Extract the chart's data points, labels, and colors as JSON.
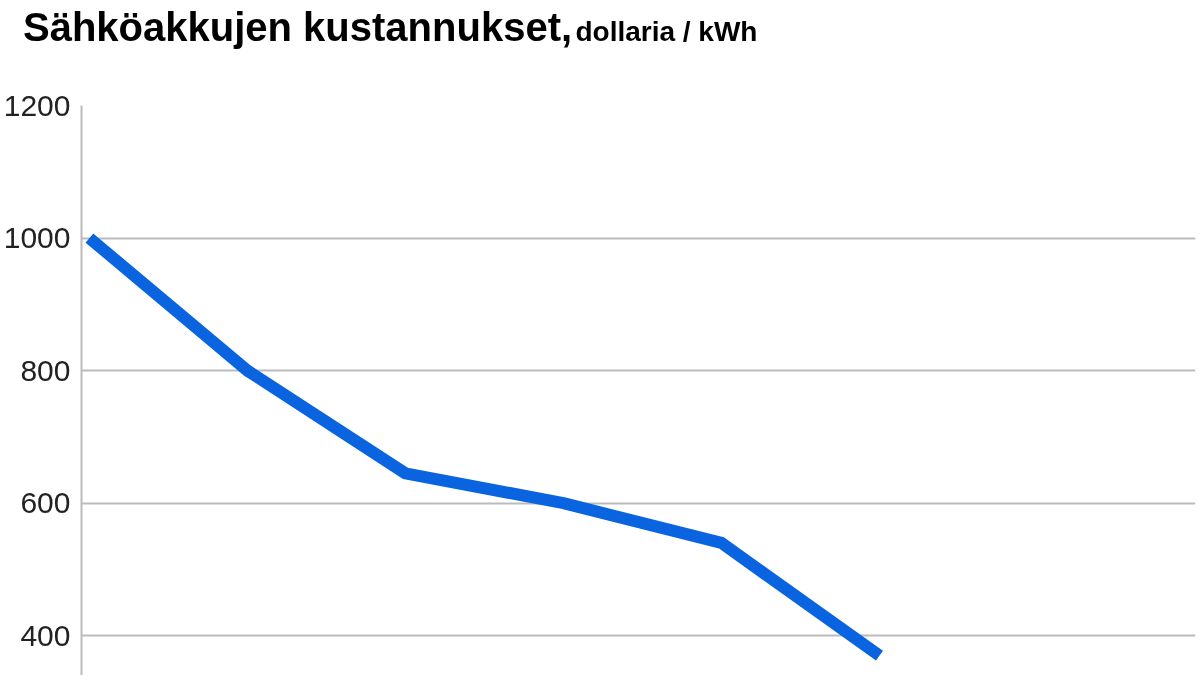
{
  "chart_data": {
    "type": "line",
    "title": "Sähköakkujen kustannukset,",
    "subtitle": "dollaria / kWh",
    "categories": [
      null,
      null,
      null,
      null,
      null,
      null
    ],
    "series": [
      {
        "color": "#0a64e0",
        "values": [
          1000,
          800,
          645,
          600,
          540,
          370
        ]
      }
    ],
    "ylim": [
      340,
      1200
    ],
    "yticks": [
      400,
      600,
      800,
      1000,
      1200
    ],
    "grid": "y",
    "tick_labels": "y",
    "marker": "none",
    "line_style": "solid"
  }
}
